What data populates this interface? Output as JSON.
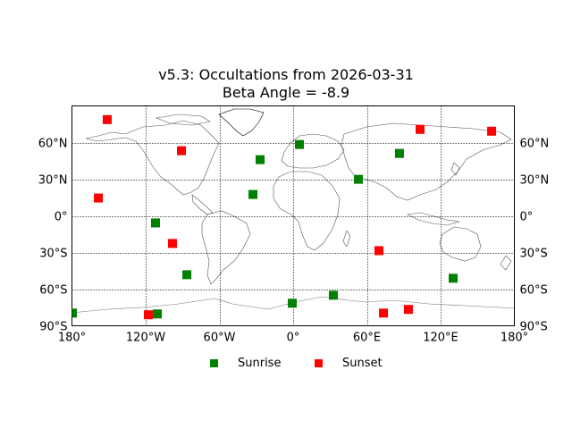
{
  "chart_data": {
    "type": "scatter",
    "title": "v5.3: Occultations from 2026-03-31",
    "subtitle": "Beta Angle = -8.9",
    "projection": "equirectangular (cylindrical) world map with coastlines and country borders",
    "xlabel": "",
    "ylabel": "",
    "xlim": [
      -180,
      180
    ],
    "ylim": [
      -90,
      90
    ],
    "grid": true,
    "grid_style": "dotted",
    "x_ticks": [
      {
        "value": -180,
        "label": "180°"
      },
      {
        "value": -120,
        "label": "120°W"
      },
      {
        "value": -60,
        "label": "60°W"
      },
      {
        "value": 0,
        "label": "0°"
      },
      {
        "value": 60,
        "label": "60°E"
      },
      {
        "value": 120,
        "label": "120°E"
      },
      {
        "value": 180,
        "label": "180°"
      }
    ],
    "y_ticks": [
      {
        "value": 60,
        "label": "60°N"
      },
      {
        "value": 30,
        "label": "30°N"
      },
      {
        "value": 0,
        "label": "0°"
      },
      {
        "value": -30,
        "label": "30°S"
      },
      {
        "value": -60,
        "label": "60°S"
      },
      {
        "value": -90,
        "label": "90°S"
      }
    ],
    "legend_position": "bottom center",
    "series": [
      {
        "name": "Sunrise",
        "color": "#008000",
        "marker": "square",
        "points": [
          {
            "lon": -179.6,
            "lat": -79.6
          },
          {
            "lon": -112.0,
            "lat": -5.8
          },
          {
            "lon": -110.5,
            "lat": -80.3
          },
          {
            "lon": -86.5,
            "lat": -48.2
          },
          {
            "lon": -32.7,
            "lat": 17.5
          },
          {
            "lon": -26.9,
            "lat": 46.0
          },
          {
            "lon": -0.7,
            "lat": -71.5
          },
          {
            "lon": 5.1,
            "lat": 58.4
          },
          {
            "lon": 32.7,
            "lat": -65.0
          },
          {
            "lon": 53.1,
            "lat": 29.9
          },
          {
            "lon": 86.5,
            "lat": 51.1
          },
          {
            "lon": 130.2,
            "lat": -51.1
          }
        ]
      },
      {
        "name": "Sunset",
        "color": "#ff0000",
        "marker": "square",
        "points": [
          {
            "lon": -158.5,
            "lat": 14.6
          },
          {
            "lon": -151.3,
            "lat": 78.8
          },
          {
            "lon": -117.8,
            "lat": -81.0
          },
          {
            "lon": -98.2,
            "lat": -22.6
          },
          {
            "lon": -90.9,
            "lat": 53.3
          },
          {
            "lon": 69.8,
            "lat": -28.5
          },
          {
            "lon": 73.5,
            "lat": -79.6
          },
          {
            "lon": 93.8,
            "lat": -76.6
          },
          {
            "lon": 103.3,
            "lat": 70.8
          },
          {
            "lon": 161.5,
            "lat": 69.3
          }
        ]
      }
    ]
  },
  "figure": {
    "title_line1": "v5.3: Occultations from 2026-03-31",
    "title_line2": "Beta Angle = -8.9"
  },
  "legend": {
    "items": [
      {
        "label": "Sunrise",
        "color": "#008000"
      },
      {
        "label": "Sunset",
        "color": "#ff0000"
      }
    ]
  }
}
